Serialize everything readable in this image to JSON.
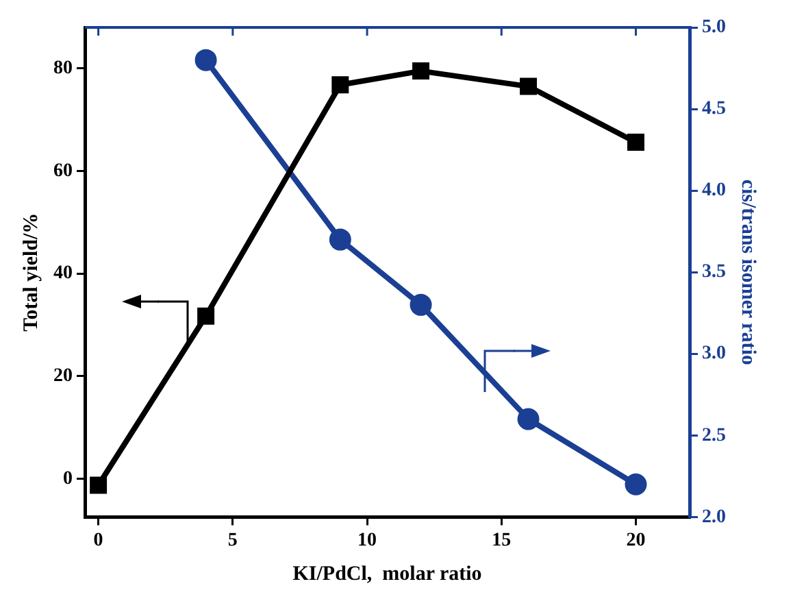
{
  "chart_data": {
    "type": "line",
    "xlabel": "KI/PdCl,  molar ratio",
    "ylabel": "Total yield/%",
    "y2label": "cis/trans isomer ratio",
    "xlim": [
      -0.5,
      22
    ],
    "xticks": [
      0,
      5,
      10,
      15,
      20
    ],
    "ylim": [
      -7.5,
      88
    ],
    "yticks": [
      0,
      20,
      40,
      60,
      80
    ],
    "y2lim": [
      2,
      5
    ],
    "y2ticks": [
      {
        "value": 2,
        "label": "2.0"
      },
      {
        "value": 2.5,
        "label": "2.5"
      },
      {
        "value": 3,
        "label": "3.0"
      },
      {
        "value": 3.5,
        "label": "3.5"
      },
      {
        "value": 4,
        "label": "4.0"
      },
      {
        "value": 4.5,
        "label": "4.5"
      },
      {
        "value": 5,
        "label": "5.0"
      }
    ],
    "grid": false,
    "legend": false,
    "line_style": "solid",
    "series": [
      {
        "color": "#000000",
        "marker": "square",
        "x": [
          0,
          4,
          9,
          12,
          16,
          20
        ],
        "values": [
          -1.3,
          31.7,
          76.8,
          79.5,
          76.5,
          65.6
        ]
      },
      {
        "color": "#1a3f94",
        "marker": "circle",
        "axis": "y2",
        "x": [
          4,
          9,
          12,
          16,
          20
        ],
        "values": [
          4.8,
          3.7,
          3.3,
          2.6,
          2.2
        ]
      }
    ]
  }
}
